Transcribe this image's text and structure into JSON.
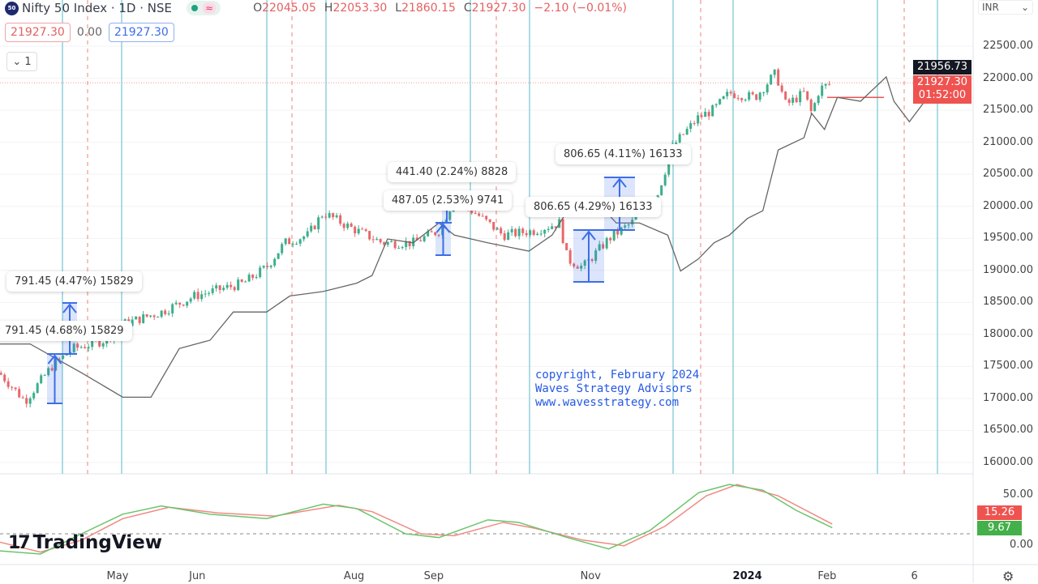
{
  "legend": {
    "symbol_icon_text": "50",
    "title": "Nifty 50 Index · 1D · NSE",
    "wave_icon": "≈",
    "ohlc": [
      {
        "k": "O",
        "v": "22045.05"
      },
      {
        "k": "H",
        "v": "22053.30"
      },
      {
        "k": "L",
        "v": "21860.15"
      },
      {
        "k": "C",
        "v": "21927.30"
      }
    ],
    "change": "−2.10 (−0.01%)",
    "bid": "21927.30",
    "spread": "0.00",
    "ask": "21927.30",
    "collapse_count": "1"
  },
  "currency": "INR",
  "price_tags": {
    "crosshair": "21956.73",
    "last": "21927.30",
    "countdown": "01:52:00",
    "osc_red": "15.26",
    "osc_green": "9.67"
  },
  "colors": {
    "up": "#3bae8c",
    "down": "#e8676a",
    "compare": "#666666",
    "osc_fast": "#6cc46c",
    "osc_slow": "#f08a84",
    "cycle_line": "#8fd0dc",
    "cycle_dash": "#f08080",
    "measure": "#3d6ee8",
    "last_price": "#ef5350"
  },
  "measurements": [
    {
      "label": "791.45 (4.68%) 15829"
    },
    {
      "label": "791.45 (4.47%) 15829"
    },
    {
      "label": "487.05 (2.53%) 9741"
    },
    {
      "label": "441.40 (2.24%) 8828"
    },
    {
      "label": "806.65 (4.29%) 16133"
    },
    {
      "label": "806.65 (4.11%) 16133"
    }
  ],
  "copyright": [
    "copyright, February 2024",
    "Waves Strategy Advisors",
    "www.wavesstrategy.com"
  ],
  "logo_text": "TradingView",
  "chart_data": {
    "type": "candlestick",
    "title": "Nifty 50 Index · 1D · NSE",
    "y_ticks": [
      "22500.00",
      "22000.00",
      "21500.00",
      "21000.00",
      "20500.00",
      "20000.00",
      "19500.00",
      "19000.00",
      "18500.00",
      "18000.00",
      "17500.00",
      "17000.00",
      "16500.00",
      "16000.00"
    ],
    "ylim": [
      16000,
      22500
    ],
    "osc_ticks": [
      "50.00",
      "0.00"
    ],
    "x_ticks": [
      {
        "label": "May",
        "date": "2023-05-01"
      },
      {
        "label": "Jun",
        "date": "2023-06-01"
      },
      {
        "label": "Aug",
        "date": "2023-08-01"
      },
      {
        "label": "Sep",
        "date": "2023-09-01"
      },
      {
        "label": "Nov",
        "date": "2023-11-01"
      },
      {
        "label": "2024",
        "date": "2024-01-01"
      },
      {
        "label": "Feb",
        "date": "2024-02-01"
      },
      {
        "label": "6",
        "date": "2024-03-06"
      }
    ],
    "close": [
      [
        "2023-03-16",
        17400
      ],
      [
        "2023-03-26",
        16960
      ],
      [
        "2023-04-06",
        17530
      ],
      [
        "2023-04-14",
        17780
      ],
      [
        "2023-04-26",
        17910
      ],
      [
        "2023-05-03",
        18160
      ],
      [
        "2023-05-18",
        18350
      ],
      [
        "2023-05-31",
        18600
      ],
      [
        "2023-06-19",
        18800
      ],
      [
        "2023-06-28",
        19050
      ],
      [
        "2023-07-05",
        19430
      ],
      [
        "2023-07-14",
        19550
      ],
      [
        "2023-07-20",
        19900
      ],
      [
        "2023-07-30",
        19680
      ],
      [
        "2023-08-12",
        19430
      ],
      [
        "2023-08-24",
        19430
      ],
      [
        "2023-09-03",
        19620
      ],
      [
        "2023-09-09",
        20120
      ],
      [
        "2023-09-18",
        19870
      ],
      [
        "2023-09-28",
        19550
      ],
      [
        "2023-10-10",
        19620
      ],
      [
        "2023-10-20",
        19740
      ],
      [
        "2023-10-23",
        19170
      ],
      [
        "2023-10-29",
        19050
      ],
      [
        "2023-11-08",
        19490
      ],
      [
        "2023-11-17",
        19740
      ],
      [
        "2023-11-27",
        20180
      ],
      [
        "2023-12-03",
        20940
      ],
      [
        "2023-12-13",
        21390
      ],
      [
        "2023-12-19",
        21510
      ],
      [
        "2023-12-25",
        21770
      ],
      [
        "2024-01-04",
        21700
      ],
      [
        "2024-01-12",
        22080
      ],
      [
        "2024-01-16",
        21580
      ],
      [
        "2024-01-23",
        21770
      ],
      [
        "2024-01-26",
        21450
      ],
      [
        "2024-01-29",
        21830
      ],
      [
        "2024-02-03",
        21930
      ]
    ],
    "compare": [
      [
        "2023-03-16",
        17850
      ],
      [
        "2023-03-28",
        17850
      ],
      [
        "2023-04-17",
        17400
      ],
      [
        "2023-05-03",
        17020
      ],
      [
        "2023-05-14",
        17020
      ],
      [
        "2023-05-25",
        17780
      ],
      [
        "2023-06-06",
        17910
      ],
      [
        "2023-06-15",
        18350
      ],
      [
        "2023-06-28",
        18350
      ],
      [
        "2023-07-07",
        18600
      ],
      [
        "2023-07-20",
        18670
      ],
      [
        "2023-08-02",
        18800
      ],
      [
        "2023-08-08",
        18920
      ],
      [
        "2023-08-14",
        19490
      ],
      [
        "2023-08-24",
        19430
      ],
      [
        "2023-09-03",
        19740
      ],
      [
        "2023-09-09",
        19550
      ],
      [
        "2023-09-22",
        19430
      ],
      [
        "2023-10-08",
        19300
      ],
      [
        "2023-10-17",
        19550
      ],
      [
        "2023-10-23",
        19930
      ],
      [
        "2023-10-29",
        20120
      ],
      [
        "2023-11-05",
        20000
      ],
      [
        "2023-11-11",
        19740
      ],
      [
        "2023-11-20",
        19740
      ],
      [
        "2023-12-01",
        19550
      ],
      [
        "2023-12-06",
        18990
      ],
      [
        "2023-12-13",
        19180
      ],
      [
        "2023-12-19",
        19430
      ],
      [
        "2023-12-25",
        19550
      ],
      [
        "2024-01-01",
        19810
      ],
      [
        "2024-01-07",
        19930
      ],
      [
        "2024-01-13",
        20880
      ],
      [
        "2024-01-23",
        21070
      ],
      [
        "2024-01-26",
        21450
      ],
      [
        "2024-01-31",
        21200
      ],
      [
        "2024-02-05",
        21700
      ],
      [
        "2024-02-14",
        21640
      ],
      [
        "2024-02-24",
        22020
      ],
      [
        "2024-02-27",
        21640
      ],
      [
        "2024-03-04",
        21320
      ],
      [
        "2024-03-10",
        21640
      ],
      [
        "2024-03-17",
        21960
      ]
    ],
    "osc_fast": [
      [
        "2023-03-16",
        -27
      ],
      [
        "2023-04-01",
        -32
      ],
      [
        "2023-04-17",
        0
      ],
      [
        "2023-05-03",
        31
      ],
      [
        "2023-05-18",
        44
      ],
      [
        "2023-06-06",
        31
      ],
      [
        "2023-06-28",
        24
      ],
      [
        "2023-07-20",
        47
      ],
      [
        "2023-08-02",
        40
      ],
      [
        "2023-08-21",
        0
      ],
      [
        "2023-09-03",
        -6
      ],
      [
        "2023-09-22",
        22
      ],
      [
        "2023-10-04",
        18
      ],
      [
        "2023-10-23",
        -6
      ],
      [
        "2023-11-08",
        -24
      ],
      [
        "2023-11-24",
        5
      ],
      [
        "2023-12-13",
        65
      ],
      [
        "2023-12-25",
        78
      ],
      [
        "2024-01-07",
        69
      ],
      [
        "2024-01-20",
        37
      ],
      [
        "2024-02-03",
        9.67
      ]
    ],
    "osc_slow": [
      [
        "2023-03-16",
        -13
      ],
      [
        "2023-04-01",
        -29
      ],
      [
        "2023-04-17",
        -10
      ],
      [
        "2023-05-03",
        24
      ],
      [
        "2023-05-21",
        42
      ],
      [
        "2023-06-09",
        33
      ],
      [
        "2023-07-01",
        28
      ],
      [
        "2023-07-26",
        45
      ],
      [
        "2023-08-08",
        35
      ],
      [
        "2023-08-27",
        0
      ],
      [
        "2023-09-09",
        -3
      ],
      [
        "2023-09-28",
        18
      ],
      [
        "2023-10-10",
        9
      ],
      [
        "2023-10-29",
        -10
      ],
      [
        "2023-11-14",
        -19
      ],
      [
        "2023-11-30",
        12
      ],
      [
        "2023-12-16",
        60
      ],
      [
        "2023-12-28",
        78
      ],
      [
        "2024-01-13",
        60
      ],
      [
        "2024-02-03",
        15.26
      ]
    ]
  }
}
